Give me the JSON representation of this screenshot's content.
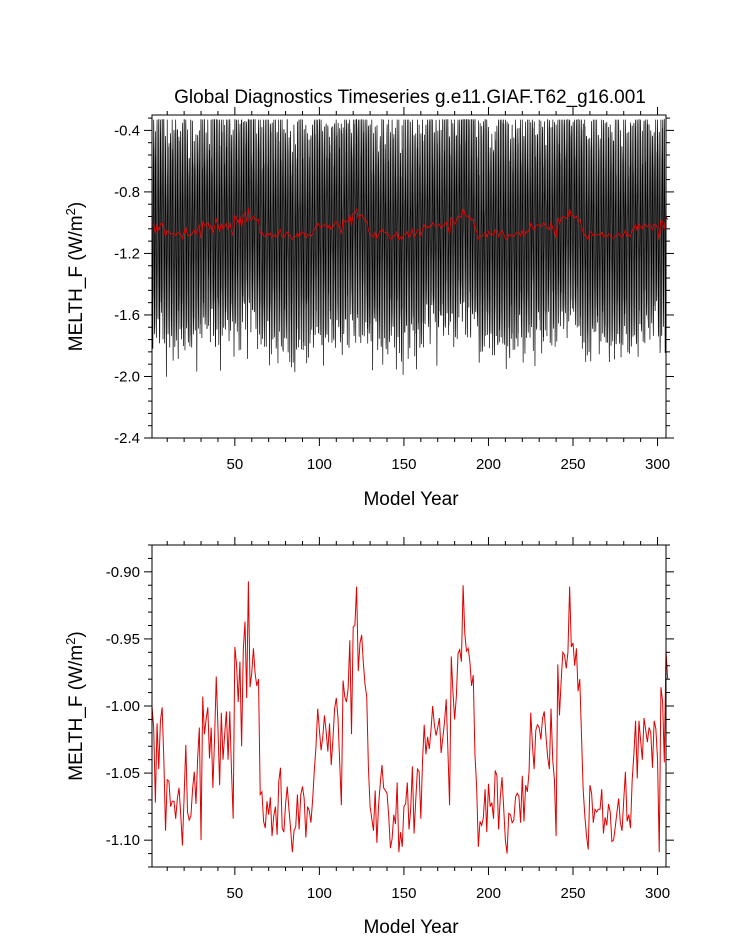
{
  "figure": {
    "title": "Global Diagnostics Timeseries g.e11.GIAF.T62_g16.001"
  },
  "chart_data": [
    {
      "type": "line",
      "title": "Global Diagnostics Timeseries g.e11.GIAF.T62_g16.001",
      "xlabel": "Model Year",
      "ylabel": "MELTH_F (W/m²)",
      "ylabel_main": "MELTH_F (W/m",
      "ylabel_sup": "2",
      "ylabel_close": ")",
      "xlim": [
        1,
        305
      ],
      "ylim": [
        -2.4,
        -0.3
      ],
      "xticks": [
        50,
        100,
        150,
        200,
        250,
        300
      ],
      "yticks": [
        -0.4,
        -0.8,
        -1.2,
        -1.6,
        -2.0,
        -2.4
      ],
      "ytick_labels": [
        "-0.4",
        "-0.8",
        "-1.2",
        "-1.6",
        "-2.0",
        "-2.4"
      ],
      "grid": false,
      "legend": "none",
      "series": [
        {
          "color": "#000000",
          "description_cycle_years": 62,
          "monthly_range_typical": [
            -1.95,
            -0.42
          ],
          "monthly_range_extreme": [
            -2.18,
            -0.33
          ]
        },
        {
          "color": "#e00000",
          "values_ref": "annual_mean"
        }
      ]
    },
    {
      "type": "line",
      "title": "",
      "xlabel": "Model Year",
      "ylabel": "MELTH_F (W/m²)",
      "ylabel_main": "MELTH_F (W/m",
      "ylabel_sup": "2",
      "ylabel_close": ")",
      "xlim": [
        1,
        305
      ],
      "ylim": [
        -1.12,
        -0.88
      ],
      "xticks": [
        50,
        100,
        150,
        200,
        250,
        300
      ],
      "yticks": [
        -0.9,
        -0.95,
        -1.0,
        -1.05,
        -1.1
      ],
      "ytick_labels": [
        "-0.90",
        "-0.95",
        "-1.00",
        "-1.05",
        "-1.10"
      ],
      "grid": false,
      "legend": "none",
      "series": [
        {
          "color": "#e00000",
          "x_start": 1,
          "values": [
            -1.0,
            -1.016,
            -1.072,
            -1.013,
            -1.047,
            -1.011,
            -1.001,
            -1.04,
            -1.093,
            -1.055,
            -1.056,
            -1.075,
            -1.071,
            -1.071,
            -1.084,
            -1.069,
            -1.061,
            -1.081,
            -1.104,
            -1.067,
            -1.029,
            -1.079,
            -1.085,
            -1.082,
            -1.062,
            -1.049,
            -1.073,
            -1.039,
            -1.016,
            -1.1,
            -0.993,
            -1.021,
            -1.01,
            -1.001,
            -1.039,
            -1.016,
            -1.061,
            -1.025,
            -0.978,
            -1.016,
            -1.059,
            -1.005,
            -1.04,
            -1.021,
            -1.004,
            -1.04,
            -1.004,
            -1.048,
            -1.084,
            -0.956,
            -0.969,
            -0.997,
            -0.967,
            -1.03,
            -0.958,
            -0.937,
            -0.994,
            -0.907,
            -0.986,
            -0.975,
            -0.957,
            -0.976,
            -0.985,
            -0.98,
            -1.066,
            -1.064,
            -1.086,
            -1.091,
            -1.071,
            -1.081,
            -1.068,
            -1.097,
            -1.082,
            -1.075,
            -1.096,
            -1.056,
            -1.046,
            -1.091,
            -1.094,
            -1.073,
            -1.06,
            -1.077,
            -1.092,
            -1.109,
            -1.093,
            -1.09,
            -1.066,
            -1.092,
            -1.066,
            -1.06,
            -1.069,
            -1.098,
            -1.075,
            -1.078,
            -1.087,
            -1.07,
            -1.048,
            -1.03,
            -1.002,
            -1.018,
            -1.033,
            -1.023,
            -1.007,
            -1.019,
            -1.034,
            -1.013,
            -1.044,
            -1.025,
            -1.002,
            -0.994,
            -1.009,
            -1.042,
            -1.074,
            -0.981,
            -0.993,
            -0.997,
            -0.987,
            -0.951,
            -1.021,
            -0.941,
            -0.94,
            -0.911,
            -0.974,
            -0.953,
            -0.947,
            -0.968,
            -0.984,
            -0.993,
            -1.046,
            -1.075,
            -1.084,
            -1.093,
            -1.063,
            -1.102,
            -1.074,
            -1.058,
            -1.044,
            -1.061,
            -1.063,
            -1.065,
            -1.082,
            -1.106,
            -1.099,
            -1.081,
            -1.088,
            -1.057,
            -1.109,
            -1.094,
            -1.105,
            -1.075,
            -1.073,
            -1.057,
            -1.092,
            -1.077,
            -1.045,
            -1.095,
            -1.07,
            -1.047,
            -1.049,
            -1.084,
            -1.041,
            -1.014,
            -1.036,
            -1.023,
            -1.032,
            -1.018,
            -1.0,
            -1.014,
            -1.022,
            -1.016,
            -1.009,
            -1.035,
            -1.024,
            -1.012,
            -0.995,
            -1.033,
            -1.074,
            -0.963,
            -0.99,
            -1.01,
            -0.993,
            -0.961,
            -0.958,
            -0.967,
            -0.91,
            -0.946,
            -0.959,
            -0.957,
            -0.967,
            -0.985,
            -0.977,
            -1.036,
            -1.06,
            -1.105,
            -1.086,
            -1.089,
            -1.083,
            -1.062,
            -1.094,
            -1.058,
            -1.075,
            -1.072,
            -1.084,
            -1.048,
            -1.052,
            -1.092,
            -1.068,
            -1.053,
            -1.076,
            -1.1,
            -1.11,
            -1.08,
            -1.081,
            -1.087,
            -1.085,
            -1.068,
            -1.065,
            -1.067,
            -1.087,
            -1.052,
            -1.086,
            -1.059,
            -1.064,
            -1.049,
            -1.005,
            -1.029,
            -1.047,
            -1.018,
            -1.014,
            -1.016,
            -1.025,
            -1.009,
            -1.004,
            -1.022,
            -1.038,
            -1.047,
            -1.002,
            -1.04,
            -1.055,
            -1.097,
            -0.969,
            -1.007,
            -0.981,
            -0.96,
            -0.962,
            -0.972,
            -0.96,
            -0.911,
            -0.956,
            -0.953,
            -0.97,
            -0.957,
            -0.989,
            -0.98,
            -1.021,
            -1.062,
            -1.082,
            -1.097,
            -1.107,
            -1.059,
            -1.065,
            -1.087,
            -1.077,
            -1.079,
            -1.077,
            -1.077,
            -1.062,
            -1.095,
            -1.083,
            -1.089,
            -1.073,
            -1.079,
            -1.101,
            -1.1,
            -1.09,
            -1.079,
            -1.069,
            -1.087,
            -1.093,
            -1.07,
            -1.049,
            -1.086,
            -1.081,
            -1.091,
            -1.055,
            -1.036,
            -1.011,
            -1.054,
            -1.011,
            -1.026,
            -1.04,
            -1.009,
            -1.018,
            -1.027,
            -1.016,
            -1.02,
            -1.046,
            -1.011,
            -1.017,
            -1.04,
            -1.109,
            -0.986,
            -0.997,
            -1.042,
            -0.959,
            -0.98
          ]
        }
      ]
    }
  ]
}
